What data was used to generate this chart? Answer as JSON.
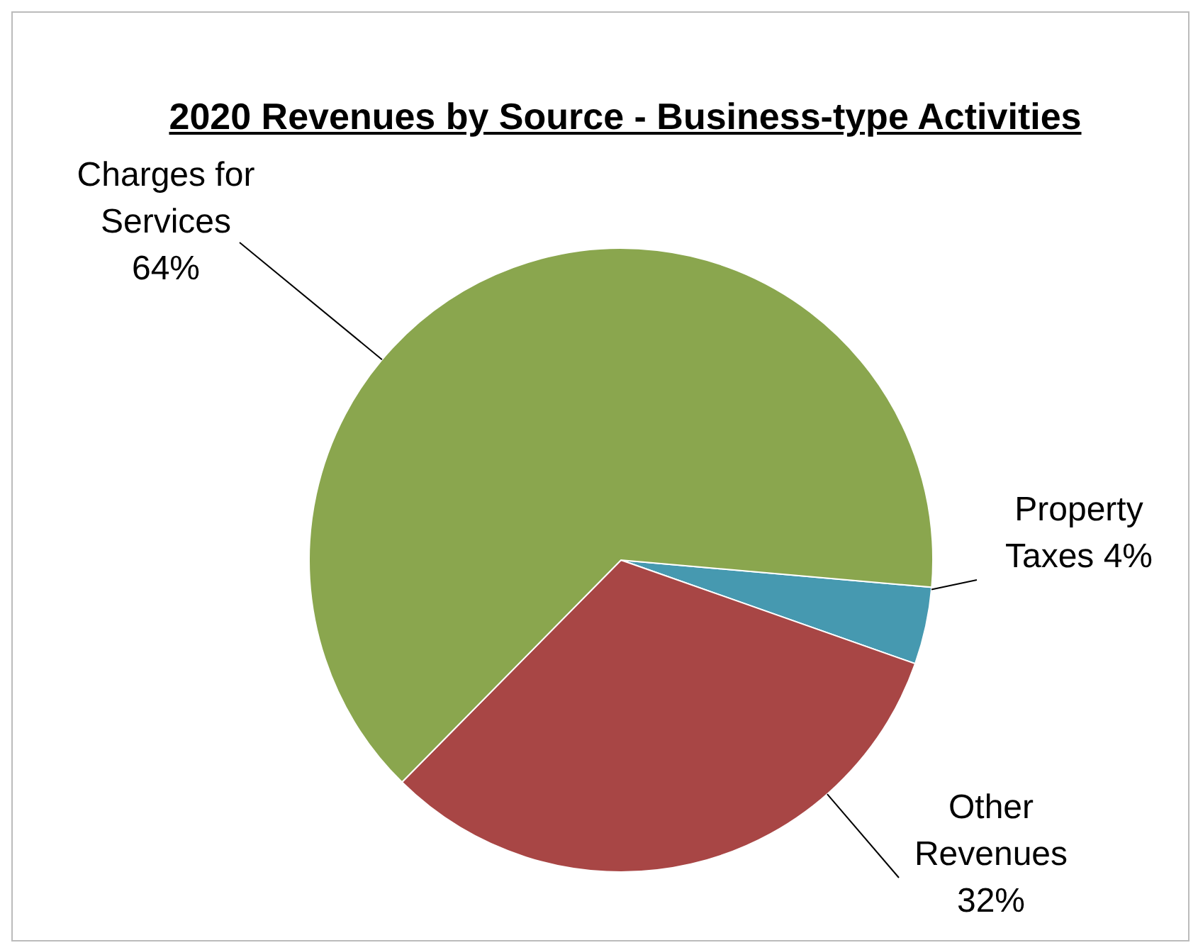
{
  "chart_data": {
    "type": "pie",
    "title": "2020 Revenues by Source - Business-type Activities",
    "categories": [
      "Property Taxes",
      "Other Revenues",
      "Charges for Services"
    ],
    "values": [
      4,
      32,
      64
    ],
    "value_labels": [
      "4%",
      "32%",
      "64%"
    ],
    "colors": [
      "#4699b0",
      "#a84645",
      "#8aa64e"
    ]
  }
}
